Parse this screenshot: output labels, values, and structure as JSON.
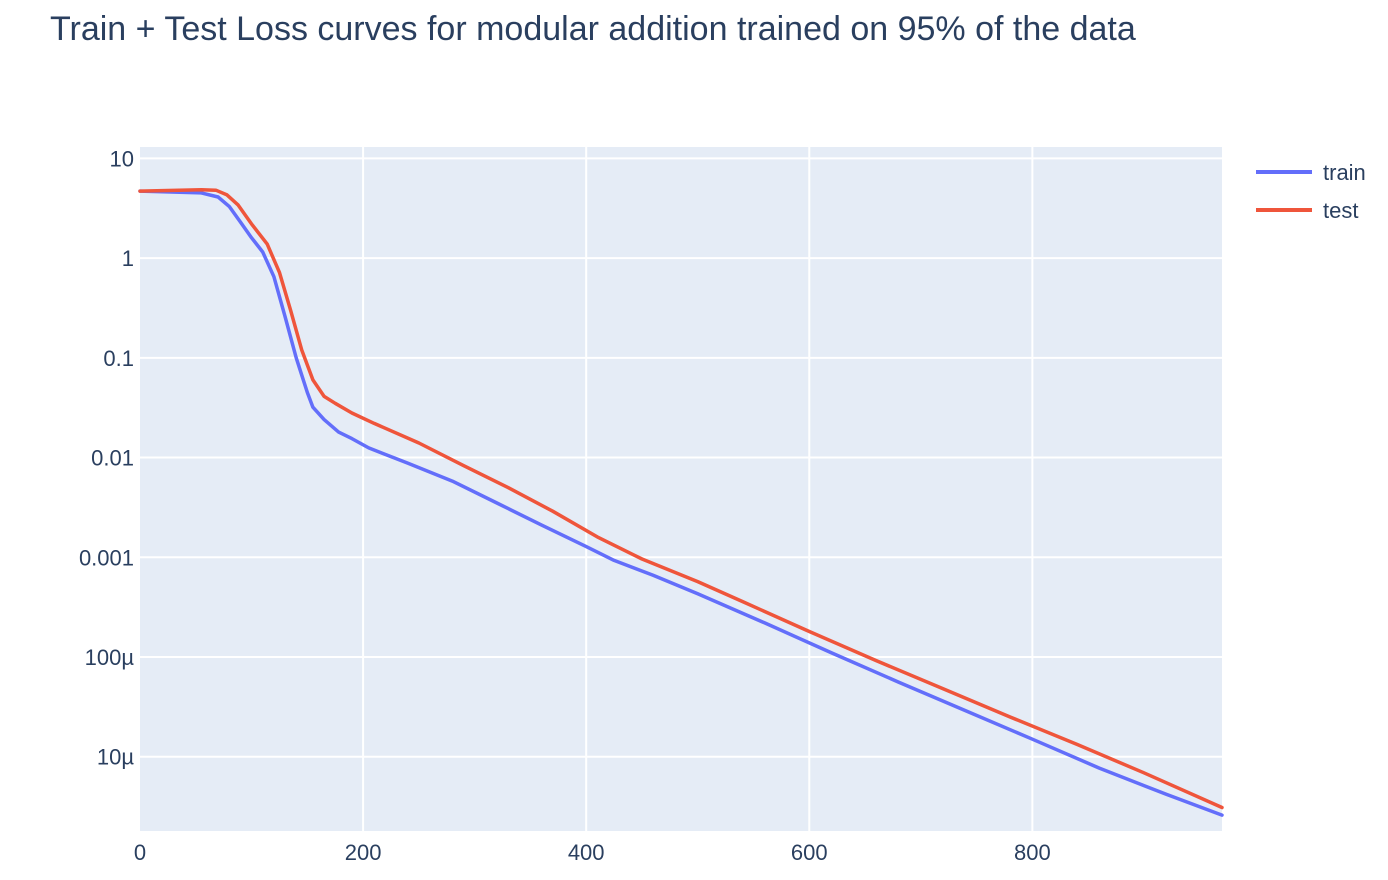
{
  "chart_data": {
    "type": "line",
    "title": "Train + Test Loss curves for modular addition trained on 95% of the data",
    "xlabel": "",
    "ylabel": "",
    "yscale": "log",
    "xlim": [
      0,
      970
    ],
    "ylim": [
      1.8e-06,
      13
    ],
    "grid": true,
    "legend_position": "top-right",
    "x_ticks": [
      0,
      200,
      400,
      600,
      800
    ],
    "x_tick_labels": [
      "0",
      "200",
      "400",
      "600",
      "800"
    ],
    "y_ticks": [
      10,
      1,
      0.1,
      0.01,
      0.001,
      0.0001,
      1e-05
    ],
    "y_tick_labels": [
      "10",
      "1",
      "0.1",
      "0.01",
      "0.001",
      "100µ",
      "10µ"
    ],
    "colors": {
      "train": "#636efa",
      "test": "#ef553b",
      "plot_bg": "#e5ecf6",
      "grid": "#ffffff",
      "text": "#2a3f5f"
    },
    "series": [
      {
        "name": "train",
        "x": [
          0,
          55,
          70,
          80,
          90,
          100,
          110,
          120,
          130,
          140,
          150,
          155,
          165,
          178,
          190,
          205,
          240,
          280,
          320,
          360,
          400,
          425,
          460,
          500,
          560,
          620,
          680,
          740,
          800,
          860,
          920,
          970
        ],
        "y": [
          4.7,
          4.5,
          4.1,
          3.3,
          2.3,
          1.6,
          1.15,
          0.65,
          0.26,
          0.1,
          0.045,
          0.032,
          0.024,
          0.018,
          0.0155,
          0.0125,
          0.0088,
          0.0058,
          0.0035,
          0.0021,
          0.00128,
          0.00093,
          0.00066,
          0.00043,
          0.00022,
          0.00011,
          5.6e-05,
          2.9e-05,
          1.5e-05,
          7.7e-06,
          4.2e-06,
          2.6e-06
        ]
      },
      {
        "name": "test",
        "x": [
          0,
          55,
          68,
          78,
          88,
          100,
          114,
          125,
          135,
          145,
          155,
          165,
          175,
          190,
          210,
          250,
          290,
          330,
          370,
          410,
          450,
          500,
          540,
          600,
          660,
          720,
          780,
          840,
          900,
          970
        ],
        "y": [
          4.7,
          4.85,
          4.8,
          4.3,
          3.4,
          2.2,
          1.38,
          0.72,
          0.3,
          0.12,
          0.06,
          0.041,
          0.035,
          0.028,
          0.022,
          0.014,
          0.0083,
          0.005,
          0.0029,
          0.0016,
          0.00096,
          0.00057,
          0.00036,
          0.00018,
          9.2e-05,
          4.8e-05,
          2.5e-05,
          1.33e-05,
          6.9e-06,
          3.1e-06
        ]
      }
    ]
  }
}
